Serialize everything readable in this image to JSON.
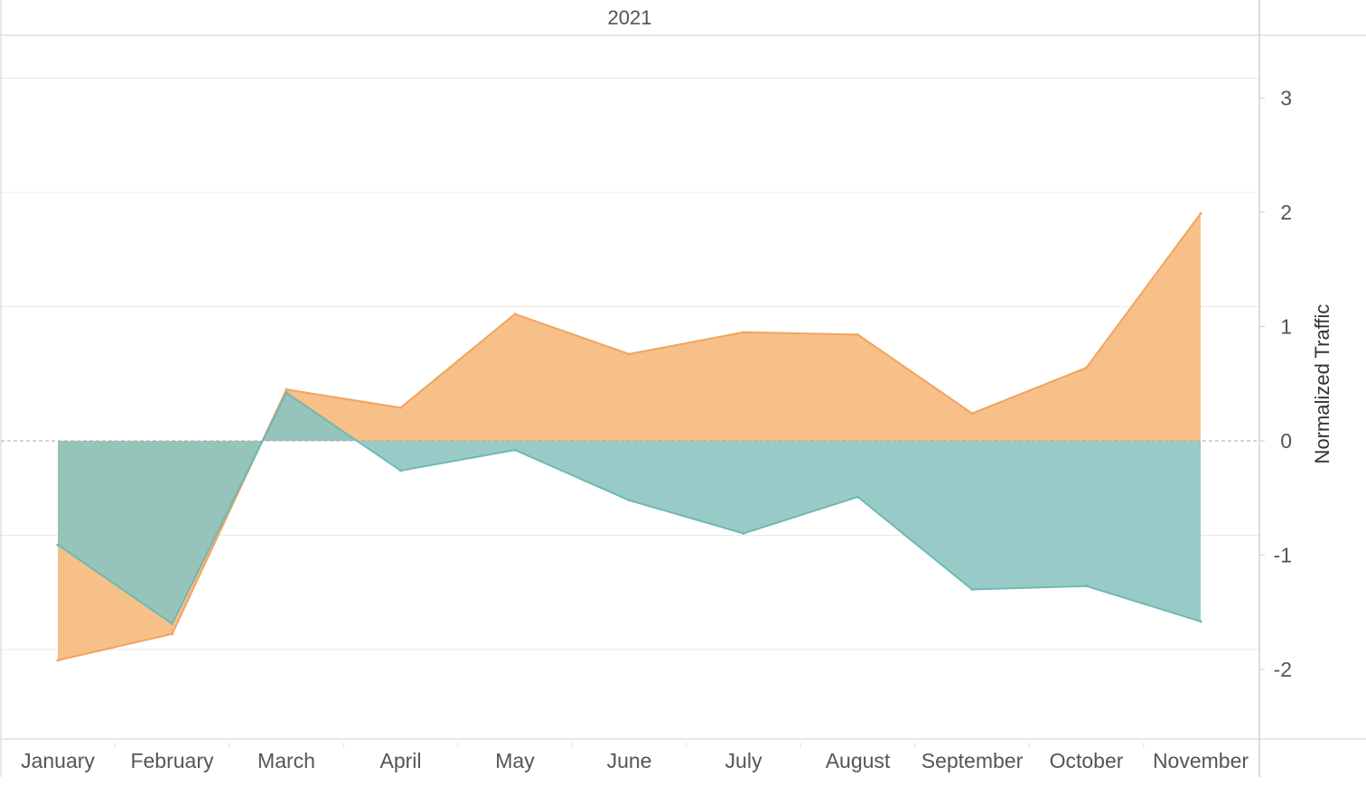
{
  "chart_data": {
    "type": "area",
    "header": "2021",
    "categories": [
      "January",
      "February",
      "March",
      "April",
      "May",
      "June",
      "July",
      "August",
      "September",
      "October",
      "November"
    ],
    "series": [
      {
        "color": "#f5b778",
        "stroke": "#f0a460",
        "values": [
          -1.92,
          -1.69,
          0.45,
          0.29,
          1.11,
          0.76,
          0.95,
          0.93,
          0.24,
          0.64,
          1.99
        ]
      },
      {
        "color": "#8ac4c0",
        "stroke": "#6fb8b3",
        "values": [
          -0.91,
          -1.6,
          0.42,
          -0.26,
          -0.08,
          -0.52,
          -0.81,
          -0.49,
          -1.3,
          -1.27,
          -1.58
        ]
      }
    ],
    "ylabel": "Normalized Traffic",
    "yticks": [
      3,
      2,
      1,
      0,
      -1,
      -2
    ],
    "ylim": [
      -2.5,
      3.4
    ],
    "zero_line": "dashed",
    "gridlines": true,
    "axis_position": "right"
  }
}
